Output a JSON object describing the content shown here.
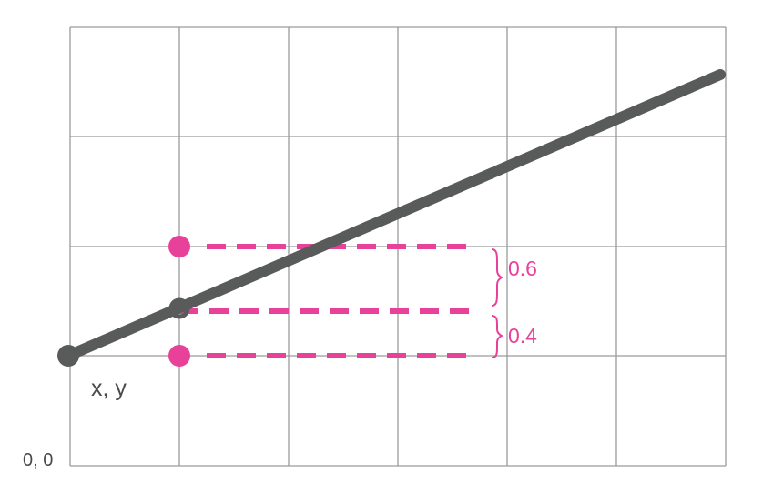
{
  "colors": {
    "line": "#595b5b",
    "accent": "#e8419a",
    "grid": "#9a9a9a",
    "text": "#4a4a4a"
  },
  "labels": {
    "origin": "0, 0",
    "point": "x, y",
    "upper_fraction": "0.6",
    "lower_fraction": "0.4"
  }
}
